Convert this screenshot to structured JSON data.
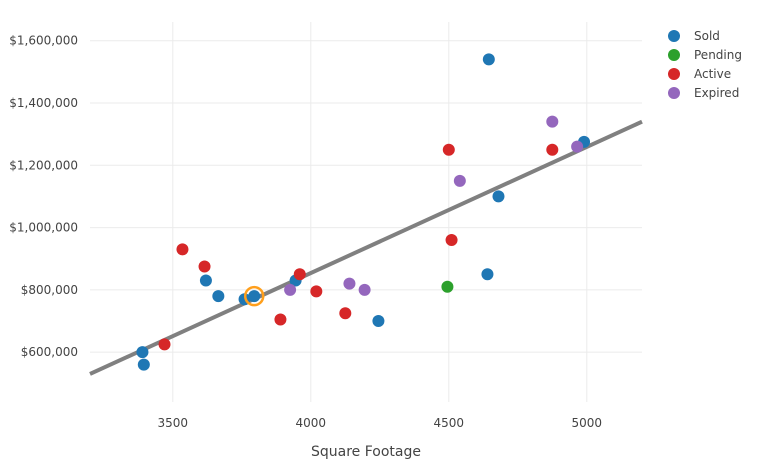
{
  "chart_data": {
    "type": "scatter",
    "xlabel": "Square Footage",
    "ylabel": "",
    "xlim": [
      3200,
      5200
    ],
    "ylim": [
      440000,
      1660000
    ],
    "x_ticks": [
      3500,
      4000,
      4500,
      5000
    ],
    "x_tick_labels": [
      "3500",
      "4000",
      "4500",
      "5000"
    ],
    "y_ticks": [
      600000,
      800000,
      1000000,
      1200000,
      1400000,
      1600000
    ],
    "y_tick_labels": [
      "$600,000",
      "$800,000",
      "$1,000,000",
      "$1,200,000",
      "$1,400,000",
      "$1,600,000"
    ],
    "grid": true,
    "legend_position": "top-right",
    "trendline": {
      "color": "#808080",
      "points": [
        [
          3200,
          530000
        ],
        [
          5200,
          1340000
        ]
      ]
    },
    "highlight": {
      "x": 3795,
      "y": 780000,
      "color": "#ff9f1c"
    },
    "series": [
      {
        "name": "Sold",
        "color": "#1f77b4",
        "points": [
          [
            3390,
            600000
          ],
          [
            3395,
            560000
          ],
          [
            3620,
            830000
          ],
          [
            3665,
            780000
          ],
          [
            3760,
            770000
          ],
          [
            3795,
            780000
          ],
          [
            3945,
            830000
          ],
          [
            4245,
            700000
          ],
          [
            4640,
            850000
          ],
          [
            4645,
            1540000
          ],
          [
            4680,
            1100000
          ],
          [
            4990,
            1275000
          ]
        ]
      },
      {
        "name": "Pending",
        "color": "#2ca02c",
        "points": [
          [
            4495,
            810000
          ]
        ]
      },
      {
        "name": "Active",
        "color": "#d62728",
        "points": [
          [
            3470,
            625000
          ],
          [
            3535,
            930000
          ],
          [
            3615,
            875000
          ],
          [
            3890,
            705000
          ],
          [
            3960,
            850000
          ],
          [
            4020,
            795000
          ],
          [
            4125,
            725000
          ],
          [
            4500,
            1250000
          ],
          [
            4510,
            960000
          ],
          [
            4875,
            1250000
          ]
        ]
      },
      {
        "name": "Expired",
        "color": "#9467bd",
        "points": [
          [
            3925,
            800000
          ],
          [
            4140,
            820000
          ],
          [
            4195,
            800000
          ],
          [
            4540,
            1150000
          ],
          [
            4875,
            1340000
          ],
          [
            4965,
            1260000
          ]
        ]
      }
    ]
  }
}
